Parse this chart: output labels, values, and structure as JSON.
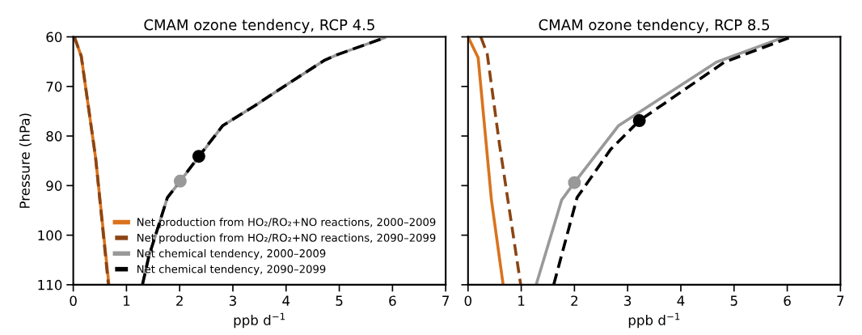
{
  "chart_data": [
    {
      "type": "line",
      "title": "CMAM ozone tendency, RCP 4.5",
      "xlabel": "ppb d$^{−1}$",
      "ylabel": "Pressure (hPa)",
      "xlim": [
        0,
        7
      ],
      "xticks": [
        0,
        1,
        2,
        3,
        4,
        5,
        6,
        7
      ],
      "ylim": [
        110,
        60
      ],
      "yticks": [
        60,
        70,
        80,
        90,
        100,
        110
      ],
      "grid": false,
      "legend": "bottom right",
      "series": [
        {
          "name": "Net production from HO₂/RO₂+NO reactions, 2000–2009",
          "color": "#d9731f",
          "line_style": "solid",
          "x": [
            0.02,
            0.15,
            0.27,
            0.42,
            0.67
          ],
          "values": [
            60,
            63.9,
            73,
            84.4,
            110
          ]
        },
        {
          "name": "Net production from HO₂/RO₂+NO reactions, 2090–2099",
          "color": "#8b4513",
          "line_style": "dashed",
          "x": [
            0.02,
            0.15,
            0.27,
            0.42,
            0.66
          ],
          "values": [
            60,
            63.9,
            73,
            84.4,
            110
          ]
        },
        {
          "name": "Net chemical tendency, 2000–2009",
          "color": "#999999",
          "line_style": "solid",
          "x": [
            1.3,
            1.42,
            1.77,
            2.01,
            2.81,
            3.41,
            4.06,
            4.71,
            4.96,
            5.85
          ],
          "values": [
            110,
            104.3,
            92.4,
            89.1,
            77.9,
            73.9,
            69.3,
            64.8,
            63.6,
            60.2
          ]
        },
        {
          "name": "Net chemical tendency, 2090–2099",
          "color": "#000000",
          "line_style": "dashed",
          "x": [
            1.3,
            1.42,
            1.77,
            2.01,
            2.36,
            2.81,
            3.41,
            4.06,
            4.71,
            4.96,
            5.85
          ],
          "values": [
            110,
            104.3,
            92.4,
            89.1,
            84.1,
            77.9,
            73.9,
            69.3,
            64.8,
            63.6,
            60.2
          ]
        },
        {
          "type": "scatter",
          "marker": "circle",
          "color": "#999999",
          "x": [
            2.01
          ],
          "values": [
            89.1
          ]
        },
        {
          "type": "scatter",
          "marker": "circle",
          "color": "#000000",
          "x": [
            2.36
          ],
          "values": [
            84.1
          ]
        }
      ]
    },
    {
      "type": "line",
      "title": "CMAM ozone tendency, RCP 8.5",
      "xlabel": "ppb d$^{−1}$",
      "xlim": [
        0,
        7
      ],
      "xticks": [
        0,
        1,
        2,
        3,
        4,
        5,
        6,
        7
      ],
      "ylim": [
        110,
        60
      ],
      "yticks": [
        60,
        70,
        80,
        90,
        100,
        110
      ],
      "grid": false,
      "tick_labels": "x",
      "series": [
        {
          "color": "#d9731f",
          "line_style": "solid",
          "x": [
            0.01,
            0.19,
            0.44,
            0.66
          ],
          "values": [
            60.2,
            64.2,
            92.9,
            110
          ]
        },
        {
          "color": "#8b4513",
          "line_style": "dashed",
          "x": [
            0.24,
            0.36,
            0.59,
            0.99
          ],
          "values": [
            60,
            63.4,
            81.6,
            110
          ]
        },
        {
          "color": "#999999",
          "line_style": "solid",
          "x": [
            1.28,
            1.76,
            2.0,
            2.83,
            4.67,
            5.91
          ],
          "values": [
            110,
            92.9,
            89.4,
            77.9,
            65.1,
            60.2
          ]
        },
        {
          "color": "#000000",
          "line_style": "dashed",
          "x": [
            1.61,
            2.05,
            2.68,
            3.22,
            4.82,
            6.03
          ],
          "values": [
            110,
            92.4,
            82.7,
            76.9,
            65.1,
            60.2
          ]
        },
        {
          "type": "scatter",
          "marker": "circle",
          "color": "#999999",
          "x": [
            2.0
          ],
          "values": [
            89.4
          ]
        },
        {
          "type": "scatter",
          "marker": "circle",
          "color": "#000000",
          "x": [
            3.22
          ],
          "values": [
            76.9
          ]
        }
      ]
    }
  ]
}
